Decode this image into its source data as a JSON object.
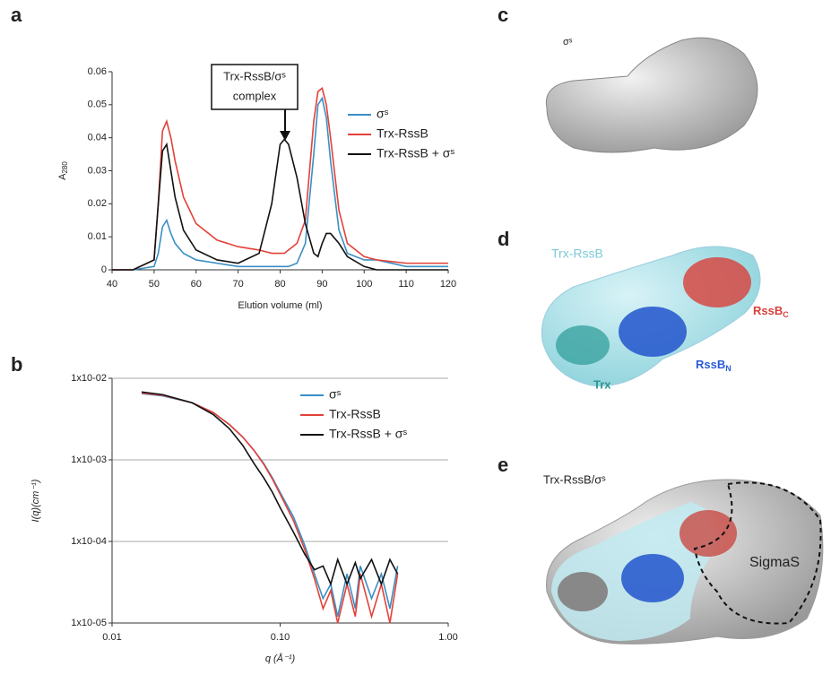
{
  "chart_data": [
    {
      "type": "line",
      "panel": "a",
      "xlabel": "Elution volume (ml)",
      "ylabel": {
        "text": "A",
        "sub": "280"
      },
      "annotation": [
        "Trx-RssB/σˢ",
        "complex"
      ],
      "xlim": [
        40,
        120
      ],
      "xticks": [
        40,
        50,
        60,
        70,
        80,
        90,
        100,
        110,
        120
      ],
      "ylim": [
        0,
        0.06
      ],
      "yticks": [
        0,
        0.01,
        0.02,
        0.03,
        0.04,
        0.05,
        0.06
      ],
      "grid": false,
      "legend": "upper right",
      "x": [
        40,
        45,
        50,
        51,
        52,
        53,
        54,
        55,
        57,
        60,
        65,
        70,
        75,
        78,
        80,
        81,
        82,
        84,
        86,
        88,
        89,
        90,
        91,
        92,
        94,
        96,
        100,
        103,
        110,
        120
      ],
      "series": [
        {
          "name": "σˢ",
          "color": "#3a8fc4",
          "values": [
            0,
            0,
            0.001,
            0.005,
            0.013,
            0.015,
            0.011,
            0.008,
            0.005,
            0.003,
            0.002,
            0.001,
            0.001,
            0.001,
            0.001,
            0.001,
            0.001,
            0.002,
            0.008,
            0.035,
            0.05,
            0.052,
            0.046,
            0.033,
            0.012,
            0.005,
            0.003,
            0.003,
            0.001,
            0.001
          ]
        },
        {
          "name": "Trx-RssB",
          "color": "#e3413a",
          "values": [
            0,
            0,
            0.003,
            0.02,
            0.042,
            0.045,
            0.04,
            0.033,
            0.022,
            0.014,
            0.009,
            0.007,
            0.006,
            0.005,
            0.005,
            0.005,
            0.006,
            0.008,
            0.015,
            0.045,
            0.054,
            0.055,
            0.05,
            0.04,
            0.018,
            0.008,
            0.004,
            0.003,
            0.002,
            0.002
          ]
        },
        {
          "name": "Trx-RssB + σˢ",
          "color": "#111111",
          "values": [
            0,
            0,
            0.003,
            0.02,
            0.036,
            0.038,
            0.03,
            0.022,
            0.012,
            0.006,
            0.003,
            0.002,
            0.005,
            0.02,
            0.038,
            0.0395,
            0.038,
            0.028,
            0.014,
            0.005,
            0.004,
            0.008,
            0.011,
            0.011,
            0.008,
            0.004,
            0.001,
            0,
            0,
            0
          ]
        }
      ]
    },
    {
      "type": "line",
      "panel": "b",
      "xlabel": "q (Å⁻¹)",
      "ylabel": "I(q)(cm⁻¹)",
      "xlog": true,
      "ylog": true,
      "xlim": [
        0.01,
        1
      ],
      "xticks": [
        0.01,
        {
          "value": 0.1,
          "label": "0.10"
        },
        {
          "value": 1,
          "label": "1.00"
        }
      ],
      "ylim": [
        1e-05,
        0.01
      ],
      "yticks": [
        {
          "value": 1e-05,
          "label": "1x10-05"
        },
        {
          "value": 0.0001,
          "label": "1x10-04"
        },
        {
          "value": 0.001,
          "label": "1x10-03"
        },
        {
          "value": 0.01,
          "label": "1x10-02"
        }
      ],
      "grid": true,
      "legend": "upper right",
      "x": [
        0.015,
        0.02,
        0.03,
        0.04,
        0.05,
        0.06,
        0.07,
        0.08,
        0.09,
        0.1,
        0.12,
        0.14,
        0.16,
        0.18,
        0.2,
        0.22,
        0.25,
        0.28,
        0.3,
        0.35,
        0.4,
        0.45,
        0.5
      ],
      "series": [
        {
          "name": "σˢ",
          "color": "#3a8fc4",
          "values": [
            0.0065,
            0.0061,
            0.005,
            0.0038,
            0.0027,
            0.0019,
            0.0013,
            0.0009,
            0.0006,
            0.0004,
            0.0002,
            9e-05,
            4e-05,
            2e-05,
            3e-05,
            1.2e-05,
            4e-05,
            1.5e-05,
            5e-05,
            2e-05,
            4e-05,
            1.5e-05,
            5e-05
          ]
        },
        {
          "name": "Trx-RssB",
          "color": "#e3413a",
          "values": [
            0.0066,
            0.0062,
            0.005,
            0.0038,
            0.0027,
            0.0019,
            0.0013,
            0.00088,
            0.00058,
            0.00038,
            0.00018,
            8e-05,
            3.5e-05,
            1.5e-05,
            2.5e-05,
            1e-05,
            3e-05,
            1.2e-05,
            4e-05,
            1.2e-05,
            3e-05,
            1e-05,
            4e-05
          ]
        },
        {
          "name": "Trx-RssB + σˢ",
          "color": "#111111",
          "values": [
            0.0068,
            0.0063,
            0.005,
            0.0036,
            0.0024,
            0.0015,
            0.0009,
            0.0006,
            0.0004,
            0.00026,
            0.00013,
            7e-05,
            4.5e-05,
            5e-05,
            3e-05,
            6e-05,
            3e-05,
            5.5e-05,
            3.5e-05,
            6e-05,
            3e-05,
            6e-05,
            4e-05
          ]
        }
      ]
    }
  ],
  "images": [
    {
      "panel": "c",
      "labels": [
        {
          "text": "σˢ"
        }
      ]
    },
    {
      "panel": "d",
      "labels": [
        {
          "text": "Trx-RssB"
        },
        {
          "text": "Trx"
        },
        {
          "text": "RssB",
          "sub": "N"
        },
        {
          "text": "RssB",
          "sub": "C"
        }
      ]
    },
    {
      "panel": "e",
      "labels": [
        {
          "text": "Trx-RssB/σˢ"
        },
        {
          "text": "SigmaS"
        }
      ]
    }
  ]
}
